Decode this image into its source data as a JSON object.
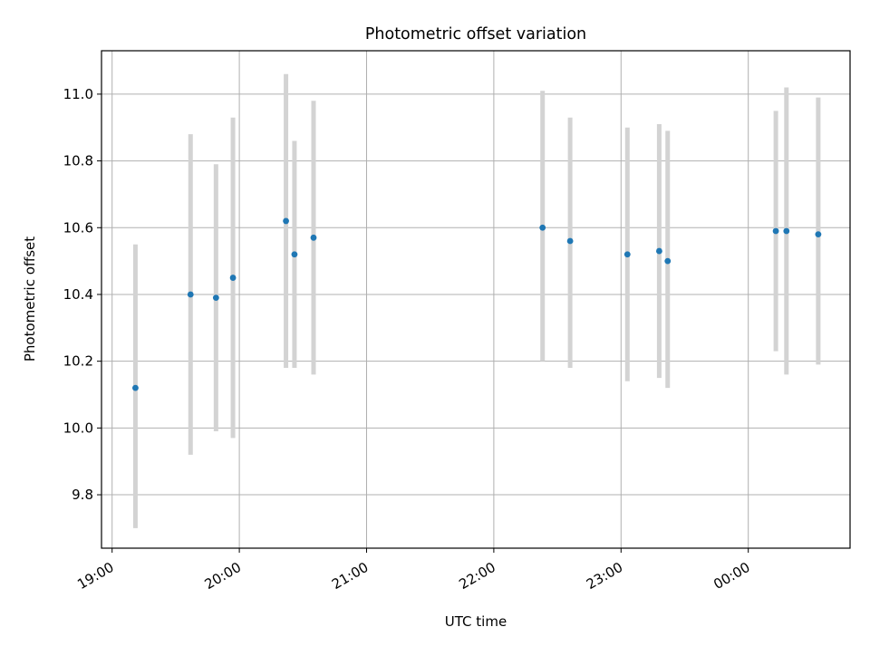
{
  "chart_data": {
    "type": "scatter",
    "title": "Photometric offset variation",
    "xlabel": "UTC time",
    "ylabel": "Photometric offset",
    "x_ticks": [
      "19:00",
      "20:00",
      "21:00",
      "22:00",
      "23:00",
      "00:00"
    ],
    "y_ticks": [
      "9.8",
      "10.0",
      "10.2",
      "10.4",
      "10.6",
      "10.8",
      "11.0"
    ],
    "x_tick_values": [
      0,
      60,
      120,
      180,
      240,
      300
    ],
    "y_tick_values": [
      9.8,
      10.0,
      10.2,
      10.4,
      10.6,
      10.8,
      11.0
    ],
    "xlim": [
      -5,
      348
    ],
    "ylim": [
      9.64,
      11.13
    ],
    "grid": true,
    "series": [
      {
        "marker_color": "#1f77b4",
        "errorbar_color": "#d3d3d3",
        "points": [
          {
            "x": 11,
            "y": 10.12,
            "ylo": 9.7,
            "yhi": 10.55
          },
          {
            "x": 37,
            "y": 10.4,
            "ylo": 9.92,
            "yhi": 10.88
          },
          {
            "x": 49,
            "y": 10.39,
            "ylo": 9.99,
            "yhi": 10.79
          },
          {
            "x": 57,
            "y": 10.45,
            "ylo": 9.97,
            "yhi": 10.93
          },
          {
            "x": 82,
            "y": 10.62,
            "ylo": 10.18,
            "yhi": 11.06
          },
          {
            "x": 86,
            "y": 10.52,
            "ylo": 10.18,
            "yhi": 10.86
          },
          {
            "x": 95,
            "y": 10.57,
            "ylo": 10.16,
            "yhi": 10.98
          },
          {
            "x": 203,
            "y": 10.6,
            "ylo": 10.2,
            "yhi": 11.01
          },
          {
            "x": 216,
            "y": 10.56,
            "ylo": 10.18,
            "yhi": 10.93
          },
          {
            "x": 243,
            "y": 10.52,
            "ylo": 10.14,
            "yhi": 10.9
          },
          {
            "x": 258,
            "y": 10.53,
            "ylo": 10.15,
            "yhi": 10.91
          },
          {
            "x": 262,
            "y": 10.5,
            "ylo": 10.12,
            "yhi": 10.89
          },
          {
            "x": 313,
            "y": 10.59,
            "ylo": 10.23,
            "yhi": 10.95
          },
          {
            "x": 318,
            "y": 10.59,
            "ylo": 10.16,
            "yhi": 11.02
          },
          {
            "x": 333,
            "y": 10.58,
            "ylo": 10.19,
            "yhi": 10.99
          }
        ]
      }
    ]
  }
}
